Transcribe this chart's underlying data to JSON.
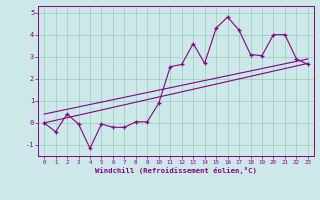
{
  "xlabel": "Windchill (Refroidissement éolien,°C)",
  "bg_color": "#cce8e8",
  "line_color": "#880088",
  "x_main": [
    0,
    1,
    2,
    3,
    4,
    5,
    6,
    7,
    8,
    9,
    10,
    11,
    12,
    13,
    14,
    15,
    16,
    17,
    18,
    19,
    20,
    21,
    22,
    23
  ],
  "y_main": [
    0.0,
    -0.4,
    0.4,
    -0.05,
    -1.15,
    -0.05,
    -0.2,
    -0.2,
    0.05,
    0.05,
    0.9,
    2.55,
    2.65,
    3.6,
    2.7,
    4.3,
    4.8,
    4.2,
    3.1,
    3.05,
    4.0,
    4.0,
    2.9,
    2.65
  ],
  "y_line1_start": 0.0,
  "y_line1_end": 2.7,
  "y_line2_start": 0.4,
  "y_line2_end": 2.9,
  "ylim": [
    -1.5,
    5.3
  ],
  "xlim": [
    -0.5,
    23.5
  ],
  "yticks": [
    -1,
    0,
    1,
    2,
    3,
    4,
    5
  ],
  "xticks": [
    0,
    1,
    2,
    3,
    4,
    5,
    6,
    7,
    8,
    9,
    10,
    11,
    12,
    13,
    14,
    15,
    16,
    17,
    18,
    19,
    20,
    21,
    22,
    23
  ],
  "grid_color": "#99ccbb",
  "marker_size": 3.0
}
